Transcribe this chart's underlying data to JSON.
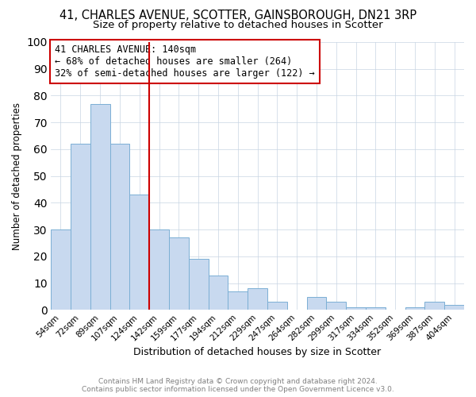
{
  "title": "41, CHARLES AVENUE, SCOTTER, GAINSBOROUGH, DN21 3RP",
  "subtitle": "Size of property relative to detached houses in Scotter",
  "xlabel": "Distribution of detached houses by size in Scotter",
  "ylabel": "Number of detached properties",
  "bar_labels": [
    "54sqm",
    "72sqm",
    "89sqm",
    "107sqm",
    "124sqm",
    "142sqm",
    "159sqm",
    "177sqm",
    "194sqm",
    "212sqm",
    "229sqm",
    "247sqm",
    "264sqm",
    "282sqm",
    "299sqm",
    "317sqm",
    "334sqm",
    "352sqm",
    "369sqm",
    "387sqm",
    "404sqm"
  ],
  "bar_values": [
    30,
    62,
    77,
    62,
    43,
    30,
    27,
    19,
    13,
    7,
    8,
    3,
    0,
    5,
    3,
    1,
    1,
    0,
    1,
    3,
    2
  ],
  "bar_color": "#c8d9ef",
  "bar_edge_color": "#7bafd4",
  "vline_color": "#cc0000",
  "ylim": [
    0,
    100
  ],
  "annotation_title": "41 CHARLES AVENUE: 140sqm",
  "annotation_line1": "← 68% of detached houses are smaller (264)",
  "annotation_line2": "32% of semi-detached houses are larger (122) →",
  "annotation_box_color": "#cc0000",
  "footer1": "Contains HM Land Registry data © Crown copyright and database right 2024.",
  "footer2": "Contains public sector information licensed under the Open Government Licence v3.0.",
  "title_fontsize": 10.5,
  "subtitle_fontsize": 9.5,
  "xlabel_fontsize": 9,
  "ylabel_fontsize": 8.5,
  "tick_fontsize": 7.5,
  "annotation_fontsize": 8.5,
  "footer_fontsize": 6.5,
  "grid_color": "#c8d4e3"
}
